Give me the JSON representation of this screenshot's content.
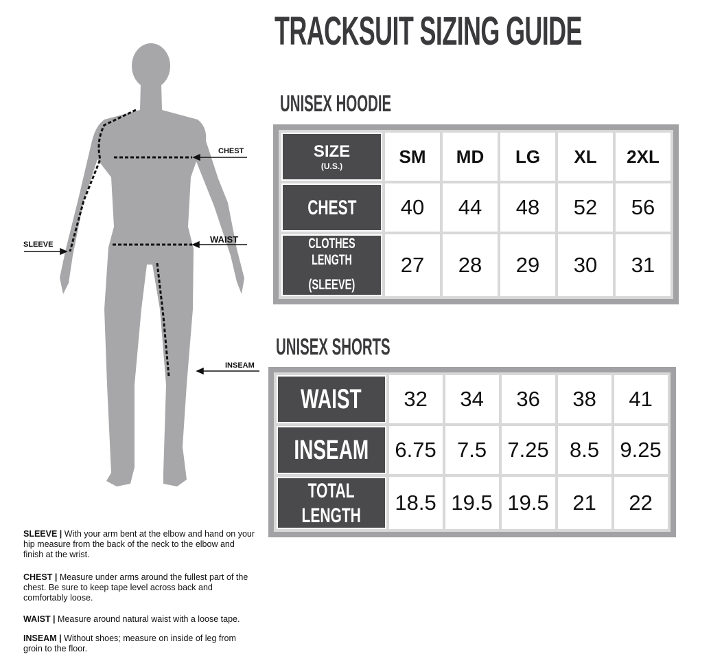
{
  "title": "TRACKSUIT SIZING GUIDE",
  "hoodie": {
    "heading": "UNISEX HOODIE",
    "header_label": "SIZE",
    "header_sub": "(U.S.)",
    "sizes": [
      "SM",
      "MD",
      "LG",
      "XL",
      "2XL"
    ],
    "rows": [
      {
        "label": "CHEST",
        "sub": "",
        "values": [
          "40",
          "44",
          "48",
          "52",
          "56"
        ]
      },
      {
        "label": "CLOTHES LENGTH",
        "sub": "(SLEEVE)",
        "values": [
          "27",
          "28",
          "29",
          "30",
          "31"
        ]
      }
    ]
  },
  "shorts": {
    "heading": "UNISEX SHORTS",
    "rows": [
      {
        "label": "WAIST",
        "sub": "",
        "values": [
          "32",
          "34",
          "36",
          "38",
          "41"
        ]
      },
      {
        "label": "INSEAM",
        "sub": "",
        "values": [
          "6.75",
          "7.5",
          "7.25",
          "8.5",
          "9.25"
        ]
      },
      {
        "label": "TOTAL",
        "sub": "LENGTH",
        "values": [
          "18.5",
          "19.5",
          "19.5",
          "21",
          "22"
        ]
      }
    ]
  },
  "figure": {
    "labels": {
      "chest": "CHEST",
      "waist": "WAIST",
      "sleeve": "SLEEVE",
      "inseam": "INSEAM"
    },
    "body_color": "#a7a7a9"
  },
  "instructions": [
    {
      "term": "SLEEVE |",
      "text": " With your arm bent at the elbow and hand on your hip measure from the back of the neck to the elbow and finish at the wrist."
    },
    {
      "term": "CHEST |",
      "text": " Measure under arms around the fullest part of the chest. Be sure to keep tape level across back and comfortably loose."
    },
    {
      "term": "WAIST |",
      "text": " Measure around natural waist with a loose tape."
    },
    {
      "term": "INSEAM |",
      "text": " Without shoes; measure on inside of leg from groin to the floor."
    }
  ]
}
